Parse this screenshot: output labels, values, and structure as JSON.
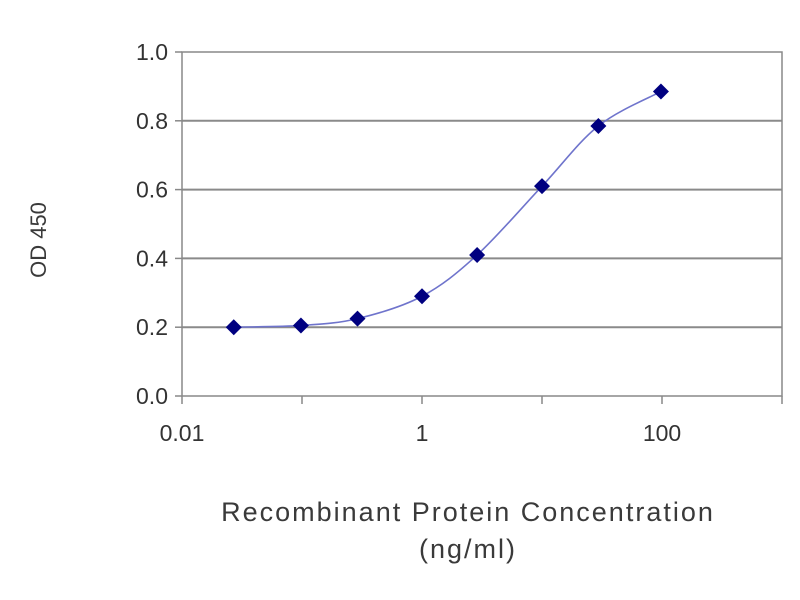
{
  "chart_data": {
    "type": "scatter",
    "xlabel_line1": "Recombinant Protein Concentration",
    "xlabel_line2": "(ng/ml)",
    "ylabel": "OD 450",
    "x_scale": "log",
    "xlim": [
      0.01,
      1000
    ],
    "ylim": [
      0.0,
      1.0
    ],
    "x_ticks": [
      {
        "value": 0.01,
        "label": "0.01"
      },
      {
        "value": 1,
        "label": "1"
      },
      {
        "value": 100,
        "label": "100"
      }
    ],
    "y_ticks": [
      {
        "value": 0.0,
        "label": "0.0"
      },
      {
        "value": 0.2,
        "label": "0.2"
      },
      {
        "value": 0.4,
        "label": "0.4"
      },
      {
        "value": 0.6,
        "label": "0.6"
      },
      {
        "value": 0.8,
        "label": "0.8"
      },
      {
        "value": 1.0,
        "label": "1.0"
      }
    ],
    "grid": "horizontal",
    "series": [
      {
        "marker": "diamond",
        "color": "#000080",
        "line_color": "#6f74cc",
        "points": [
          {
            "x": 0.027,
            "y": 0.2
          },
          {
            "x": 0.098,
            "y": 0.205
          },
          {
            "x": 0.29,
            "y": 0.225
          },
          {
            "x": 1.0,
            "y": 0.29
          },
          {
            "x": 2.88,
            "y": 0.41
          },
          {
            "x": 10.0,
            "y": 0.61
          },
          {
            "x": 29.5,
            "y": 0.785
          },
          {
            "x": 98,
            "y": 0.885
          }
        ]
      }
    ]
  }
}
